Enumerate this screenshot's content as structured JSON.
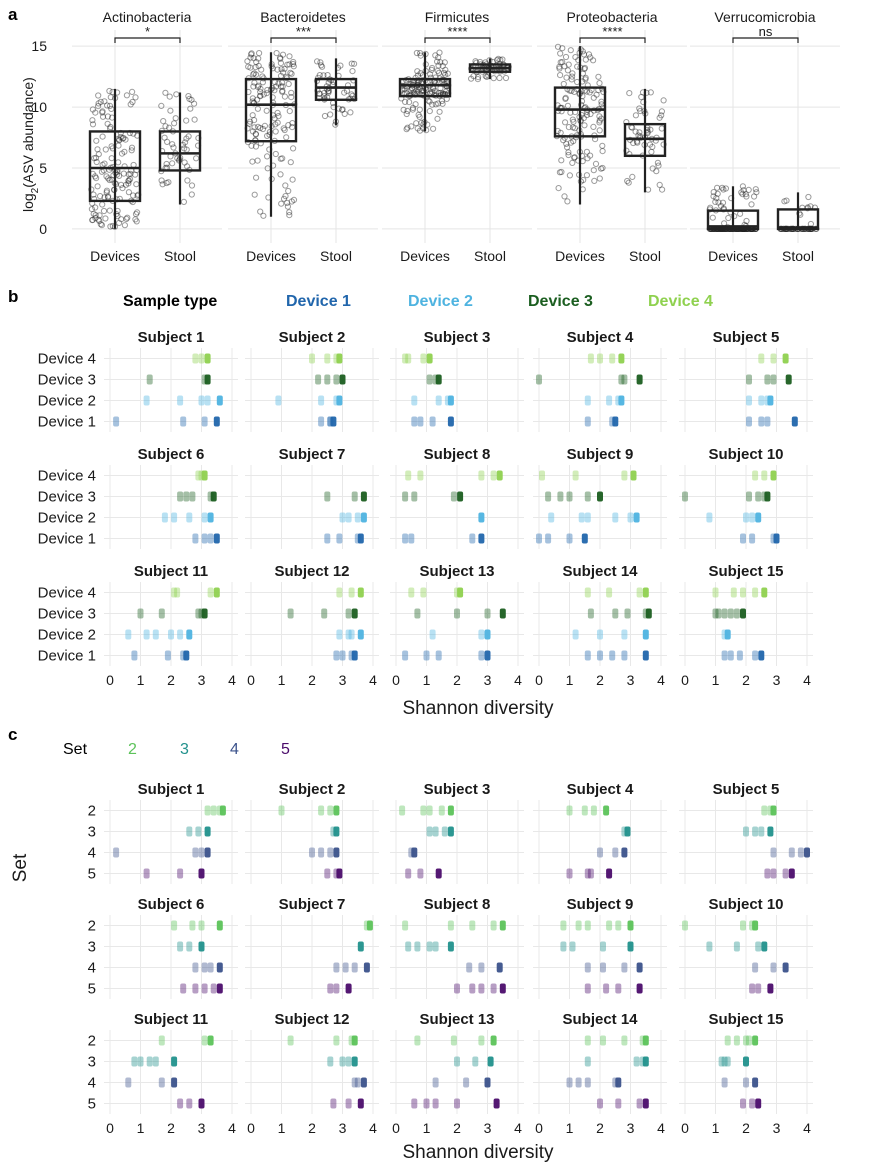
{
  "panels": {
    "a": {
      "label": "a",
      "ylabel_main": "log",
      "ylabel_sub": "2",
      "ylabel_rest": "(ASV abundance)",
      "colors": {
        "point": "#222222",
        "box": "#222222"
      }
    },
    "b": {
      "label": "b",
      "legend_title": "Sample type",
      "xlabel": "Shannon diversity"
    },
    "c": {
      "label": "c",
      "legend_title": "Set",
      "xlabel": "Shannon diversity",
      "ylabel": "Set"
    }
  },
  "chart_data": [
    {
      "type": "box",
      "panel": "a",
      "facets": [
        "Actinobacteria",
        "Bacteroidetes",
        "Firmicutes",
        "Proteobacteria",
        "Verrucomicrobia"
      ],
      "categories": [
        "Devices",
        "Stool"
      ],
      "significance": [
        "*",
        "***",
        "****",
        "****",
        "ns"
      ],
      "ylim": [
        -0.5,
        16
      ],
      "yticks": [
        0,
        5,
        10,
        15
      ],
      "boxes": [
        [
          {
            "q1": 2.3,
            "median": 5.0,
            "q3": 8.0,
            "lo": 0,
            "hi": 11.5
          },
          {
            "q1": 4.8,
            "median": 6.2,
            "q3": 8.0,
            "lo": 2.0,
            "hi": 11.2
          }
        ],
        [
          {
            "q1": 7.2,
            "median": 10.2,
            "q3": 12.3,
            "lo": 1.0,
            "hi": 14.5
          },
          {
            "q1": 10.6,
            "median": 11.6,
            "q3": 12.3,
            "lo": 8.5,
            "hi": 14.0
          }
        ],
        [
          {
            "q1": 10.9,
            "median": 11.8,
            "q3": 12.3,
            "lo": 8.0,
            "hi": 14.5
          },
          {
            "q1": 12.9,
            "median": 13.2,
            "q3": 13.5,
            "lo": 12.3,
            "hi": 14.0
          }
        ],
        [
          {
            "q1": 7.6,
            "median": 9.8,
            "q3": 11.6,
            "lo": 2.0,
            "hi": 15.0
          },
          {
            "q1": 6.0,
            "median": 7.4,
            "q3": 8.6,
            "lo": 3.0,
            "hi": 11.5
          }
        ],
        [
          {
            "q1": 0.0,
            "median": 0.2,
            "q3": 1.5,
            "lo": 0,
            "hi": 3.5
          },
          {
            "q1": 0.0,
            "median": 0.1,
            "q3": 1.6,
            "lo": 0,
            "hi": 3.0
          }
        ]
      ]
    },
    {
      "type": "scatter",
      "panel": "b",
      "series_names": [
        "Device 1",
        "Device 2",
        "Device 3",
        "Device 4"
      ],
      "series_colors": [
        "#2166ac",
        "#4eb3e0",
        "#1b5e20",
        "#8fd14f"
      ],
      "rows": [
        "Device 4",
        "Device 3",
        "Device 2",
        "Device 1"
      ],
      "xlim": [
        0,
        4
      ],
      "xticks": [
        0,
        1,
        2,
        3,
        4
      ],
      "subjects": [
        {
          "name": "Subject 1",
          "d1": [
            0.2,
            2.4,
            3.1,
            3.5
          ],
          "d2": [
            1.2,
            2.3,
            3.0,
            3.2,
            3.6
          ],
          "d3": [
            1.3,
            3.1,
            3.2
          ],
          "d4": [
            2.8,
            3.0,
            3.2
          ]
        },
        {
          "name": "Subject 2",
          "d1": [
            2.3,
            2.6,
            2.6,
            2.7
          ],
          "d2": [
            0.9,
            2.3,
            2.8,
            2.9
          ],
          "d3": [
            2.2,
            2.5,
            2.8,
            3.0
          ],
          "d4": [
            2.0,
            2.5,
            2.8,
            2.9
          ]
        },
        {
          "name": "Subject 3",
          "d1": [
            0.6,
            0.8,
            1.2,
            1.8
          ],
          "d2": [
            0.6,
            1.4,
            1.7,
            1.8
          ],
          "d3": [
            1.1,
            1.3,
            1.4
          ],
          "d4": [
            0.3,
            0.4,
            0.9,
            1.1
          ]
        },
        {
          "name": "Subject 4",
          "d1": [
            1.6,
            2.4,
            2.5
          ],
          "d2": [
            1.6,
            2.3,
            2.6,
            2.7
          ],
          "d3": [
            0.0,
            2.7,
            2.8,
            3.3
          ],
          "d4": [
            1.7,
            2.0,
            2.4,
            2.7
          ]
        },
        {
          "name": "Subject 5",
          "d1": [
            2.1,
            2.5,
            2.7,
            3.6
          ],
          "d2": [
            2.1,
            2.5,
            2.7,
            2.8
          ],
          "d3": [
            2.1,
            2.7,
            2.9,
            3.4
          ],
          "d4": [
            2.5,
            2.9,
            3.3
          ]
        },
        {
          "name": "Subject 6",
          "d1": [
            2.8,
            3.1,
            3.3,
            3.5
          ],
          "d2": [
            1.8,
            2.1,
            2.6,
            3.1,
            3.3
          ],
          "d3": [
            2.3,
            2.5,
            2.7,
            3.3,
            3.4
          ],
          "d4": [
            2.9,
            3.0,
            3.1
          ]
        },
        {
          "name": "Subject 7",
          "d1": [
            2.5,
            2.9,
            3.5,
            3.6
          ],
          "d2": [
            3.0,
            3.2,
            3.5,
            3.7
          ],
          "d3": [
            2.5,
            3.4,
            3.7
          ],
          "d4": []
        },
        {
          "name": "Subject 8",
          "d1": [
            0.3,
            0.5,
            2.5,
            2.8
          ],
          "d2": [
            2.8
          ],
          "d3": [
            0.3,
            0.6,
            1.9,
            2.1
          ],
          "d4": [
            0.4,
            0.8,
            2.8,
            3.2,
            3.4
          ]
        },
        {
          "name": "Subject 9",
          "d1": [
            0.0,
            0.3,
            1.0,
            1.5
          ],
          "d2": [
            0.4,
            1.4,
            1.6,
            2.5,
            3.0,
            3.2
          ],
          "d3": [
            0.3,
            0.7,
            1.0,
            1.6,
            2.0
          ],
          "d4": [
            0.1,
            1.2,
            2.8,
            3.1
          ]
        },
        {
          "name": "Subject 10",
          "d1": [
            1.9,
            2.2,
            2.9,
            3.0
          ],
          "d2": [
            0.8,
            2.0,
            2.2,
            2.4
          ],
          "d3": [
            0.0,
            2.1,
            2.4,
            2.6,
            2.7
          ],
          "d4": [
            2.3,
            2.6,
            2.9
          ]
        },
        {
          "name": "Subject 11",
          "d1": [
            0.8,
            1.9,
            2.4,
            2.5
          ],
          "d2": [
            0.6,
            1.2,
            1.5,
            2.0,
            2.3,
            2.6
          ],
          "d3": [
            1.0,
            1.7,
            2.9,
            3.0,
            3.1
          ],
          "d4": [
            2.1,
            2.2,
            3.3,
            3.5
          ]
        },
        {
          "name": "Subject 12",
          "d1": [
            2.8,
            3.0,
            3.3,
            3.4
          ],
          "d2": [
            2.9,
            3.2,
            3.3,
            3.6
          ],
          "d3": [
            1.3,
            2.4,
            3.2,
            3.4
          ],
          "d4": [
            2.9,
            3.3,
            3.6
          ]
        },
        {
          "name": "Subject 13",
          "d1": [
            0.3,
            1.0,
            1.4,
            2.8,
            3.0
          ],
          "d2": [
            1.2,
            2.8,
            3.0
          ],
          "d3": [
            0.7,
            2.0,
            3.0,
            3.5
          ],
          "d4": [
            0.5,
            0.9,
            2.0,
            2.1
          ]
        },
        {
          "name": "Subject 14",
          "d1": [
            1.6,
            2.0,
            2.4,
            2.8,
            3.5
          ],
          "d2": [
            1.2,
            2.0,
            2.8,
            3.5
          ],
          "d3": [
            1.7,
            2.5,
            2.9,
            3.5,
            3.6
          ],
          "d4": [
            1.6,
            2.3,
            3.3,
            3.5
          ]
        },
        {
          "name": "Subject 15",
          "d1": [
            1.3,
            1.5,
            1.8,
            2.3,
            2.5
          ],
          "d2": [
            1.3,
            1.4
          ],
          "d3": [
            1.0,
            1.1,
            1.3,
            1.5,
            1.7,
            1.9
          ],
          "d4": [
            1.0,
            1.6,
            1.9,
            2.3,
            2.6
          ]
        }
      ]
    },
    {
      "type": "scatter",
      "panel": "c",
      "series_names": [
        "2",
        "3",
        "4",
        "5"
      ],
      "series_colors": [
        "#5cc35a",
        "#21918c",
        "#3b528b",
        "#4b0c6b"
      ],
      "rows": [
        "2",
        "3",
        "4",
        "5"
      ],
      "xlim": [
        0,
        4
      ],
      "xticks": [
        0,
        1,
        2,
        3,
        4
      ],
      "subjects": [
        {
          "name": "Subject 1",
          "s2": [
            3.2,
            3.4,
            3.6,
            3.7
          ],
          "s3": [
            2.6,
            2.9,
            3.2
          ],
          "s4": [
            0.2,
            2.8,
            3.0,
            3.2
          ],
          "s5": [
            1.2,
            2.3,
            3.0
          ]
        },
        {
          "name": "Subject 2",
          "s2": [
            1.0,
            2.3,
            2.6,
            2.8
          ],
          "s3": [
            2.7,
            2.8
          ],
          "s4": [
            2.0,
            2.3,
            2.6,
            2.8
          ],
          "s5": [
            2.5,
            2.8,
            2.9
          ]
        },
        {
          "name": "Subject 3",
          "s2": [
            0.2,
            0.9,
            1.1,
            1.5,
            1.8
          ],
          "s3": [
            1.1,
            1.3,
            1.6,
            1.8
          ],
          "s4": [
            0.5,
            0.6
          ],
          "s5": [
            0.4,
            0.8,
            1.4
          ]
        },
        {
          "name": "Subject 4",
          "s2": [
            1.0,
            1.5,
            1.8,
            2.2
          ],
          "s3": [
            2.8,
            2.9
          ],
          "s4": [
            2.0,
            2.5,
            2.8
          ],
          "s5": [
            1.0,
            1.6,
            1.7,
            2.3
          ]
        },
        {
          "name": "Subject 5",
          "s2": [
            2.6,
            2.8,
            2.9
          ],
          "s3": [
            2.0,
            2.3,
            2.5,
            2.8
          ],
          "s4": [
            2.9,
            3.5,
            3.8,
            4.0
          ],
          "s5": [
            2.7,
            2.9,
            3.3,
            3.5
          ]
        },
        {
          "name": "Subject 6",
          "s2": [
            2.1,
            2.7,
            3.0,
            3.6
          ],
          "s3": [
            2.3,
            2.6,
            3.0
          ],
          "s4": [
            2.8,
            3.1,
            3.3,
            3.6
          ],
          "s5": [
            2.4,
            2.8,
            3.1,
            3.4,
            3.6
          ]
        },
        {
          "name": "Subject 7",
          "s2": [
            3.8,
            3.9
          ],
          "s3": [
            3.6
          ],
          "s4": [
            2.8,
            3.1,
            3.4,
            3.8
          ],
          "s5": [
            2.6,
            2.8,
            3.2
          ]
        },
        {
          "name": "Subject 8",
          "s2": [
            0.3,
            1.8,
            2.5,
            3.2,
            3.5
          ],
          "s3": [
            0.4,
            0.7,
            1.1,
            1.3,
            1.8
          ],
          "s4": [
            2.4,
            2.8,
            3.4
          ],
          "s5": [
            2.0,
            2.5,
            2.8,
            3.2,
            3.5
          ]
        },
        {
          "name": "Subject 9",
          "s2": [
            0.8,
            1.3,
            1.6,
            2.3,
            2.6,
            3.0
          ],
          "s3": [
            0.8,
            1.1,
            2.1,
            3.0
          ],
          "s4": [
            1.6,
            2.1,
            2.8,
            3.3
          ],
          "s5": [
            1.6,
            2.2,
            2.6,
            3.3
          ]
        },
        {
          "name": "Subject 10",
          "s2": [
            0.0,
            1.9,
            2.2,
            2.3
          ],
          "s3": [
            0.8,
            1.7,
            2.4,
            2.6
          ],
          "s4": [
            2.3,
            2.9,
            3.3
          ],
          "s5": [
            2.2,
            2.4,
            2.8
          ]
        },
        {
          "name": "Subject 11",
          "s2": [
            1.7,
            3.1,
            3.3
          ],
          "s3": [
            0.8,
            1.0,
            1.3,
            1.5,
            2.1
          ],
          "s4": [
            0.6,
            1.7,
            2.1
          ],
          "s5": [
            2.3,
            2.6,
            3.0
          ]
        },
        {
          "name": "Subject 12",
          "s2": [
            1.3,
            2.8,
            3.3,
            3.4
          ],
          "s3": [
            2.6,
            3.0,
            3.2,
            3.4
          ],
          "s4": [
            3.4,
            3.5,
            3.7
          ],
          "s5": [
            2.7,
            3.2,
            3.6
          ]
        },
        {
          "name": "Subject 13",
          "s2": [
            0.7,
            1.9,
            2.8,
            3.2
          ],
          "s3": [
            2.0,
            2.6,
            3.1
          ],
          "s4": [
            1.3,
            2.3,
            3.0
          ],
          "s5": [
            0.6,
            1.0,
            1.3,
            2.0,
            3.3
          ]
        },
        {
          "name": "Subject 14",
          "s2": [
            1.6,
            2.1,
            2.8,
            3.4,
            3.5
          ],
          "s3": [
            1.6,
            3.2,
            3.4,
            3.5
          ],
          "s4": [
            1.0,
            1.3,
            1.6,
            2.5,
            2.6
          ],
          "s5": [
            2.0,
            2.6,
            3.3,
            3.5
          ]
        },
        {
          "name": "Subject 15",
          "s2": [
            1.4,
            1.7,
            2.0,
            2.1,
            2.3
          ],
          "s3": [
            1.2,
            1.3,
            1.4,
            2.0
          ],
          "s4": [
            1.3,
            2.0,
            2.3
          ],
          "s5": [
            1.9,
            2.2,
            2.4
          ]
        }
      ]
    }
  ]
}
